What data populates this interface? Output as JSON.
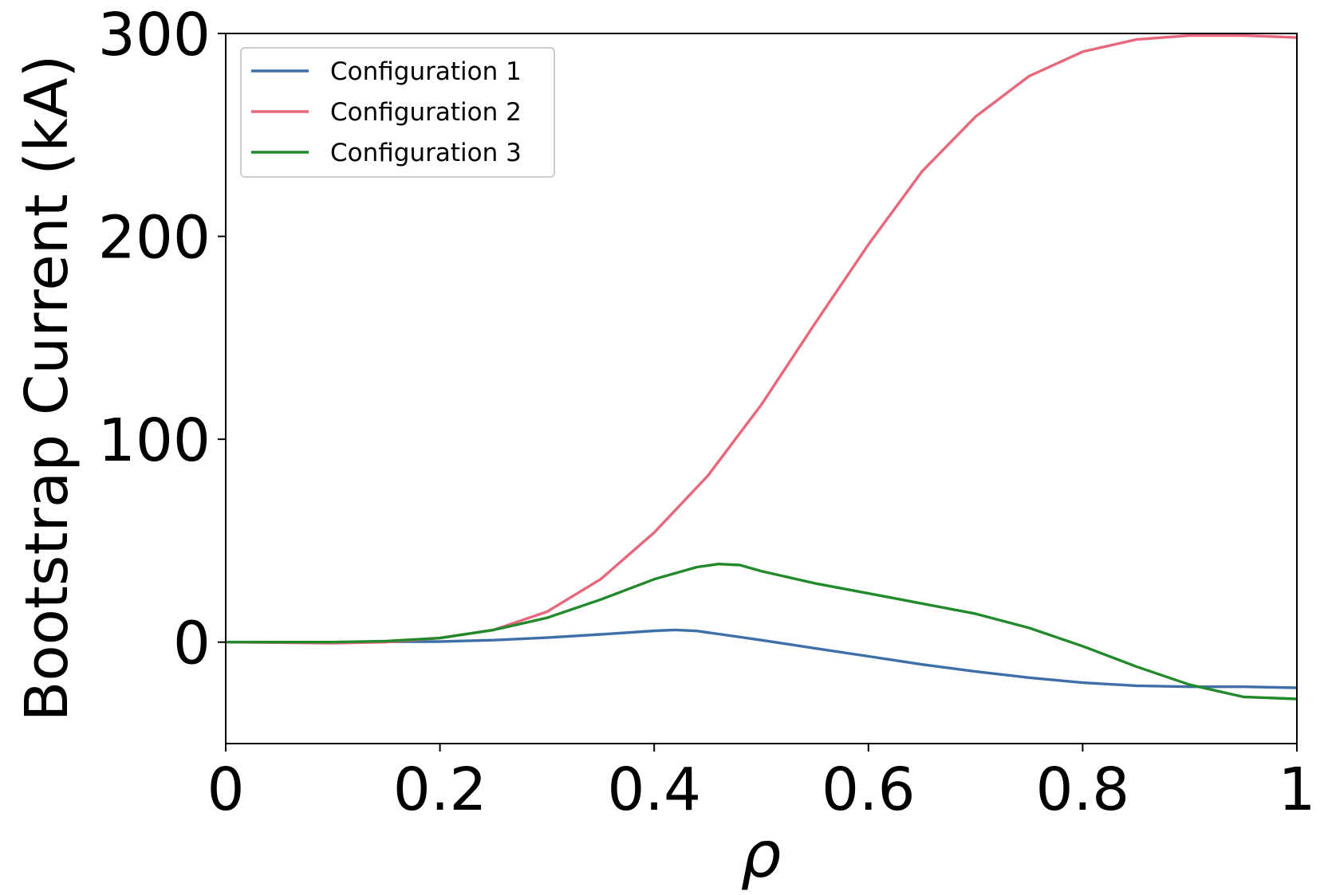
{
  "chart_data": {
    "type": "line",
    "xlabel": "ρ",
    "ylabel": "Bootstrap Current (kA)",
    "xlim": [
      0,
      1
    ],
    "ylim": [
      -50,
      300
    ],
    "xticks": [
      0,
      0.2,
      0.4,
      0.6,
      0.8,
      1
    ],
    "xtick_labels": [
      "0",
      "0.2",
      "0.4",
      "0.6",
      "0.8",
      "1"
    ],
    "yticks": [
      0,
      100,
      200,
      300
    ],
    "ytick_labels": [
      "0",
      "100",
      "200",
      "300"
    ],
    "grid": false,
    "legend_position": "top-left",
    "series": [
      {
        "name": "Configuration 1",
        "color": "#3f6fa8",
        "x": [
          0,
          0.1,
          0.2,
          0.25,
          0.3,
          0.35,
          0.4,
          0.42,
          0.44,
          0.46,
          0.5,
          0.55,
          0.6,
          0.65,
          0.7,
          0.75,
          0.8,
          0.85,
          0.9,
          0.95,
          1.0
        ],
        "y": [
          0,
          0,
          0.3,
          1,
          2.2,
          3.8,
          5.6,
          6,
          5.5,
          4,
          1,
          -3,
          -7,
          -11,
          -14.5,
          -17.5,
          -20,
          -21.5,
          -22,
          -22,
          -22.5
        ]
      },
      {
        "name": "Configuration 2",
        "color": "#e8677a",
        "x": [
          0,
          0.1,
          0.15,
          0.2,
          0.25,
          0.3,
          0.35,
          0.4,
          0.45,
          0.5,
          0.55,
          0.6,
          0.65,
          0.7,
          0.75,
          0.8,
          0.85,
          0.9,
          0.95,
          1.0
        ],
        "y": [
          0,
          -0.5,
          0,
          2,
          6,
          15,
          31,
          54,
          82,
          117,
          157,
          196,
          232,
          259,
          279,
          291,
          297,
          299,
          299,
          298
        ]
      },
      {
        "name": "Configuration 3",
        "color": "#228a2c",
        "x": [
          0,
          0.1,
          0.15,
          0.2,
          0.25,
          0.3,
          0.35,
          0.4,
          0.44,
          0.46,
          0.48,
          0.5,
          0.55,
          0.6,
          0.65,
          0.7,
          0.75,
          0.8,
          0.85,
          0.9,
          0.95,
          1.0
        ],
        "y": [
          0,
          0,
          0.5,
          2,
          6,
          12,
          21,
          31,
          37,
          38.5,
          38,
          35,
          29,
          24,
          19,
          14,
          7,
          -2,
          -12,
          -21,
          -27,
          -28
        ]
      }
    ]
  }
}
